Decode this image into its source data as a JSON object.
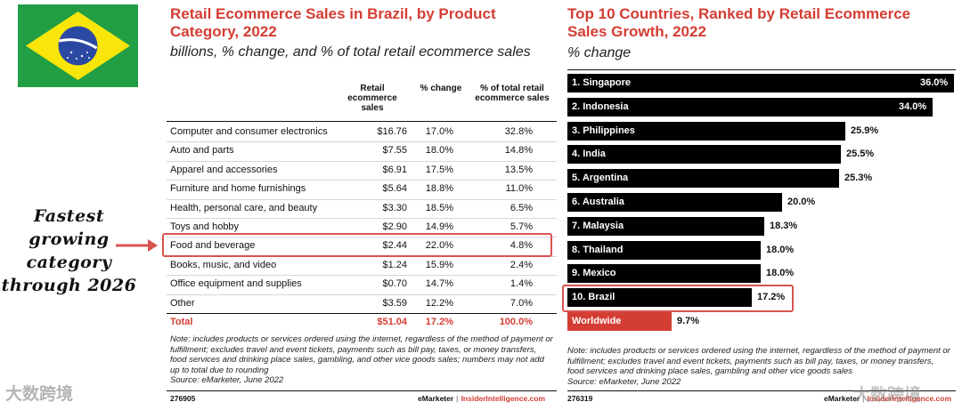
{
  "annotation": {
    "lines": [
      "Fastest",
      "growing",
      "category",
      "through 2026"
    ]
  },
  "chart_data": [
    {
      "type": "table",
      "title": "Retail Ecommerce Sales in Brazil, by Product Category, 2022",
      "subtitle": "billions, % change, and % of total retail ecommerce sales",
      "columns": [
        "",
        "Retail ecommerce sales",
        "% change",
        "% of total retail ecommerce sales"
      ],
      "rows": [
        [
          "Computer and consumer electronics",
          "$16.76",
          "17.0%",
          "32.8%"
        ],
        [
          "Auto and parts",
          "$7.55",
          "18.0%",
          "14.8%"
        ],
        [
          "Apparel and accessories",
          "$6.91",
          "17.5%",
          "13.5%"
        ],
        [
          "Furniture and home furnishings",
          "$5.64",
          "18.8%",
          "11.0%"
        ],
        [
          "Health, personal care, and beauty",
          "$3.30",
          "18.5%",
          "6.5%"
        ],
        [
          "Toys and hobby",
          "$2.90",
          "14.9%",
          "5.7%"
        ],
        [
          "Food and beverage",
          "$2.44",
          "22.0%",
          "4.8%"
        ],
        [
          "Books, music, and video",
          "$1.24",
          "15.9%",
          "2.4%"
        ],
        [
          "Office equipment and supplies",
          "$0.70",
          "14.7%",
          "1.4%"
        ],
        [
          "Other",
          "$3.59",
          "12.2%",
          "7.0%"
        ]
      ],
      "total": [
        "Total",
        "$51.04",
        "17.2%",
        "100.0%"
      ],
      "highlighted_row": "Food and beverage",
      "note": "Note: includes products or services ordered using the internet, regardless of the method of payment or fulfillment; excludes travel and event tickets, payments such as bill pay, taxes, or money transfers, food services and drinking place sales, gambling, and other vice goods sales; numbers may not add up to total due to rounding",
      "source": "Source: eMarketer, June 2022",
      "chart_id": "276905"
    },
    {
      "type": "bar",
      "orientation": "horizontal",
      "title": "Top 10 Countries, Ranked by Retail Ecommerce Sales Growth, 2022",
      "subtitle": "% change",
      "categories": [
        "1. Singapore",
        "2. Indonesia",
        "3. Philippines",
        "4. India",
        "5. Argentina",
        "6. Australia",
        "7. Malaysia",
        "8. Thailand",
        "9. Mexico",
        "10. Brazil",
        "Worldwide"
      ],
      "values": [
        36.0,
        34.0,
        25.9,
        25.5,
        25.3,
        20.0,
        18.3,
        18.0,
        18.0,
        17.2,
        9.7
      ],
      "value_labels": [
        "36.0%",
        "34.0%",
        "25.9%",
        "25.5%",
        "25.3%",
        "20.0%",
        "18.3%",
        "18.0%",
        "18.0%",
        "17.2%",
        "9.7%"
      ],
      "xlim": [
        0,
        36
      ],
      "highlighted": "10. Brazil",
      "note": "Note: includes products or services ordered using the internet, regardless of the method of payment or fulfillment; excludes travel and event tickets, payments such as bill pay, taxes, or money transfers, food services and drinking place sales, gambling and other vice goods sales",
      "source": "Source: eMarketer, June 2022",
      "chart_id": "276319"
    }
  ],
  "brand": {
    "emarketer": "eMarketer",
    "sep": "|",
    "insider": "InsiderIntelligence.com"
  },
  "watermark": {
    "left": "大数跨境",
    "right": "大数跨境"
  },
  "colors": {
    "accent": "#d43d33",
    "bar": "#000000",
    "flag_green": "#229e45",
    "flag_yellow": "#f8e509",
    "flag_blue": "#2b49a3"
  }
}
